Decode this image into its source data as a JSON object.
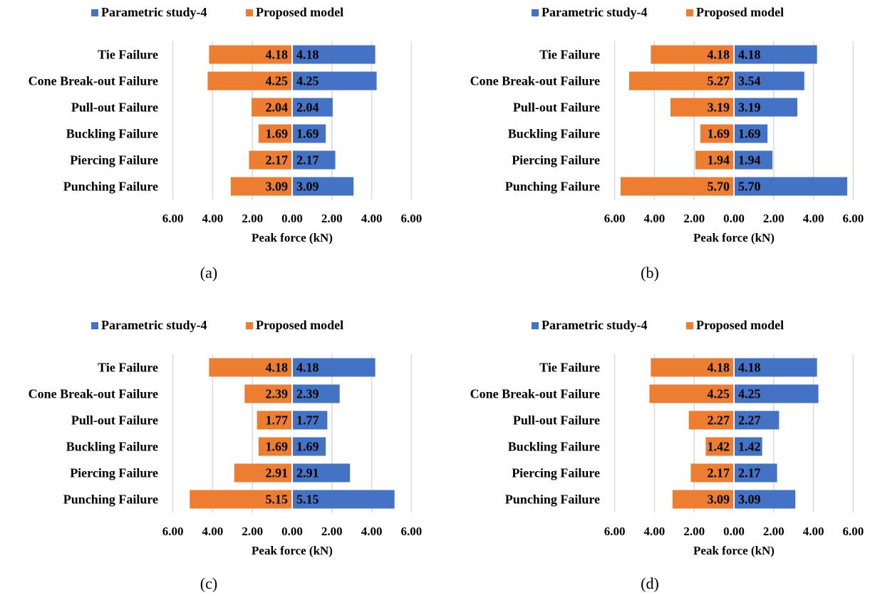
{
  "colors": {
    "parametric": "#4472C4",
    "proposed": "#ED7D31",
    "gridline": "#d9d9d9"
  },
  "chart_data": [
    {
      "type": "bar",
      "caption": "(a)",
      "categories": [
        "Tie Failure",
        "Cone Break-out Failure",
        "Pull-out Failure",
        "Buckling Failure",
        "Piercing Failure",
        "Punching Failure"
      ],
      "series": [
        {
          "name": "Parametric study-4",
          "values": [
            4.18,
            4.25,
            2.04,
            1.69,
            2.17,
            3.09
          ]
        },
        {
          "name": "Proposed model",
          "values": [
            4.18,
            4.25,
            2.04,
            1.69,
            2.17,
            3.09
          ]
        }
      ],
      "xlabel": "Peak force (kN)",
      "xticks": [
        "6.00",
        "4.00",
        "2.00",
        "0.00",
        "2.00",
        "4.00",
        "6.00"
      ],
      "xlim": [
        -6,
        6
      ],
      "legend": "top"
    },
    {
      "type": "bar",
      "caption": "(b)",
      "categories": [
        "Tie Failure",
        "Cone Break-out Failure",
        "Pull-out Failure",
        "Buckling Failure",
        "Piercing Failure",
        "Punching Failure"
      ],
      "series": [
        {
          "name": "Parametric study-4",
          "values": [
            4.18,
            3.54,
            3.19,
            1.69,
            1.94,
            5.7
          ]
        },
        {
          "name": "Proposed model",
          "values": [
            4.18,
            5.27,
            3.19,
            1.69,
            1.94,
            5.7
          ]
        }
      ],
      "xlabel": "Peak force (kN)",
      "xticks": [
        "6.00",
        "4.00",
        "2.00",
        "0.00",
        "2.00",
        "4.00",
        "6.00"
      ],
      "xlim": [
        -6,
        6
      ],
      "legend": "top"
    },
    {
      "type": "bar",
      "caption": "(c)",
      "categories": [
        "Tie Failure",
        "Cone Break-out Failure",
        "Pull-out Failure",
        "Buckling Failure",
        "Piercing Failure",
        "Punching Failure"
      ],
      "series": [
        {
          "name": "Parametric study-4",
          "values": [
            4.18,
            2.39,
            1.77,
            1.69,
            2.91,
            5.15
          ]
        },
        {
          "name": "Proposed model",
          "values": [
            4.18,
            2.39,
            1.77,
            1.69,
            2.91,
            5.15
          ]
        }
      ],
      "xlabel": "Peak force (kN)",
      "xticks": [
        "6.00",
        "4.00",
        "2.00",
        "0.00",
        "2.00",
        "4.00",
        "6.00"
      ],
      "xlim": [
        -6,
        6
      ],
      "legend": "top"
    },
    {
      "type": "bar",
      "caption": "(d)",
      "categories": [
        "Tie Failure",
        "Cone Break-out Failure",
        "Pull-out Failure",
        "Buckling Failure",
        "Piercing Failure",
        "Punching Failure"
      ],
      "series": [
        {
          "name": "Parametric study-4",
          "values": [
            4.18,
            4.25,
            2.27,
            1.42,
            2.17,
            3.09
          ]
        },
        {
          "name": "Proposed model",
          "values": [
            4.18,
            4.25,
            2.27,
            1.42,
            2.17,
            3.09
          ]
        }
      ],
      "xlabel": "Peak force (kN)",
      "xticks": [
        "6.00",
        "4.00",
        "2.00",
        "0.00",
        "2.00",
        "4.00",
        "6.00"
      ],
      "xlim": [
        -6,
        6
      ],
      "legend": "top"
    }
  ]
}
